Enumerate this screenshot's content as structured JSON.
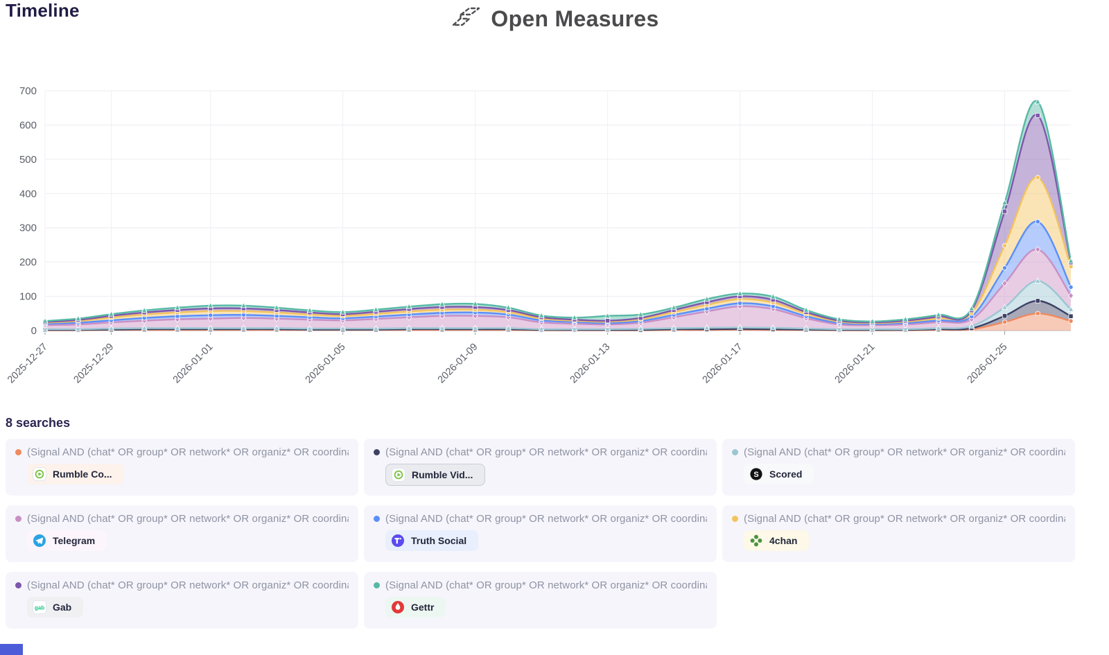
{
  "header": {
    "page_title": "Timeline",
    "brand": "Open Measures"
  },
  "misc": {
    "bottom_left_bar_color": "#4c5cd9"
  },
  "chart_data": {
    "type": "area",
    "stacked": true,
    "title": "Timeline",
    "xlabel": "",
    "ylabel": "",
    "ylim": [
      0,
      700
    ],
    "yticks": [
      0,
      100,
      200,
      300,
      400,
      500,
      600,
      700
    ],
    "grid": true,
    "legend_position": "bottom",
    "x": [
      "2025-12-27",
      "2025-12-28",
      "2025-12-29",
      "2025-12-30",
      "2025-12-31",
      "2026-01-01",
      "2026-01-02",
      "2026-01-03",
      "2026-01-04",
      "2026-01-05",
      "2026-01-06",
      "2026-01-07",
      "2026-01-08",
      "2026-01-09",
      "2026-01-10",
      "2026-01-11",
      "2026-01-12",
      "2026-01-13",
      "2026-01-14",
      "2026-01-15",
      "2026-01-16",
      "2026-01-17",
      "2026-01-18",
      "2026-01-19",
      "2026-01-20",
      "2026-01-21",
      "2026-01-22",
      "2026-01-23",
      "2026-01-24",
      "2026-01-25",
      "2026-01-26",
      "2026-01-27"
    ],
    "xticks": [
      "2025-12-27",
      "2025-12-29",
      "2026-01-01",
      "2026-01-05",
      "2026-01-09",
      "2026-01-13",
      "2026-01-17",
      "2026-01-21",
      "2026-01-25"
    ],
    "series": [
      {
        "name": "Rumble Co...",
        "color": "#ee8a5f",
        "marker": "circle",
        "values": [
          1,
          1,
          2,
          2,
          2,
          2,
          2,
          2,
          2,
          2,
          2,
          2,
          2,
          2,
          2,
          1,
          1,
          1,
          1,
          2,
          2,
          3,
          2,
          2,
          1,
          1,
          1,
          2,
          4,
          25,
          50,
          28
        ]
      },
      {
        "name": "Rumble Vid...",
        "color": "#3d4164",
        "marker": "square",
        "values": [
          1,
          1,
          1,
          2,
          2,
          2,
          2,
          2,
          1,
          1,
          1,
          2,
          2,
          2,
          2,
          1,
          1,
          1,
          1,
          2,
          2,
          2,
          2,
          1,
          1,
          1,
          1,
          2,
          3,
          18,
          37,
          14
        ]
      },
      {
        "name": "Scored",
        "color": "#9ac6d2",
        "marker": "triangle",
        "values": [
          2,
          2,
          3,
          3,
          3,
          3,
          3,
          3,
          3,
          3,
          3,
          3,
          3,
          3,
          3,
          2,
          2,
          2,
          3,
          3,
          4,
          4,
          4,
          3,
          2,
          2,
          2,
          3,
          6,
          25,
          58,
          20
        ]
      },
      {
        "name": "Telegram",
        "color": "#c98fc3",
        "marker": "diamond",
        "values": [
          12,
          14,
          18,
          22,
          26,
          28,
          30,
          28,
          26,
          24,
          28,
          32,
          36,
          36,
          32,
          20,
          16,
          14,
          18,
          32,
          48,
          62,
          55,
          30,
          14,
          12,
          14,
          18,
          20,
          70,
          92,
          40
        ]
      },
      {
        "name": "Truth Social",
        "color": "#5b8ff9",
        "marker": "circle",
        "values": [
          4,
          5,
          6,
          8,
          9,
          10,
          9,
          8,
          7,
          6,
          7,
          8,
          9,
          10,
          8,
          6,
          5,
          4,
          5,
          7,
          8,
          9,
          8,
          6,
          4,
          3,
          4,
          5,
          8,
          45,
          81,
          25
        ]
      },
      {
        "name": "4chan",
        "color": "#f3c35e",
        "marker": "circle",
        "values": [
          3,
          5,
          8,
          10,
          11,
          12,
          11,
          10,
          8,
          7,
          8,
          9,
          9,
          8,
          7,
          5,
          4,
          4,
          5,
          8,
          11,
          12,
          11,
          7,
          4,
          3,
          4,
          6,
          10,
          65,
          129,
          60
        ]
      },
      {
        "name": "Gab",
        "color": "#7e57ab",
        "marker": "square",
        "values": [
          2,
          3,
          5,
          6,
          7,
          8,
          8,
          7,
          6,
          5,
          6,
          7,
          8,
          8,
          6,
          4,
          3,
          3,
          4,
          6,
          8,
          8,
          8,
          5,
          3,
          2,
          3,
          5,
          8,
          100,
          181,
          12
        ]
      },
      {
        "name": "Gettr",
        "color": "#57b9a5",
        "marker": "triangle",
        "values": [
          3,
          4,
          5,
          6,
          7,
          8,
          8,
          7,
          6,
          6,
          6,
          7,
          8,
          9,
          7,
          5,
          6,
          14,
          10,
          7,
          9,
          8,
          9,
          6,
          4,
          3,
          4,
          5,
          5,
          25,
          40,
          4
        ]
      }
    ]
  },
  "legend": {
    "heading": "8 searches",
    "items": [
      {
        "platform": "Rumble Co...",
        "icon": "rumble-icon",
        "dot_color": "#ee8a5f",
        "badge_bg": "#fdf2ec",
        "query": "(Signal AND (chat* OR group* OR network* OR organiz* OR coordinat*..."
      },
      {
        "platform": "Rumble Vid...",
        "icon": "rumble-icon",
        "dot_color": "#3d4164",
        "badge_bg": "#e9ebef",
        "badge_border": "#c9ced6",
        "query": "(Signal AND (chat* OR group* OR network* OR organiz* OR coordinat*..."
      },
      {
        "platform": "Scored",
        "icon": "scored-icon",
        "dot_color": "#9ac6d2",
        "badge_bg": "#f7f9fa",
        "query": "(Signal AND (chat* OR group* OR network* OR organiz* OR coordinat*..."
      },
      {
        "platform": "Telegram",
        "icon": "telegram-icon",
        "dot_color": "#c98fc3",
        "badge_bg": "#fcf5fb",
        "query": "(Signal AND (chat* OR group* OR network* OR organiz* OR coordinat*..."
      },
      {
        "platform": "Truth Social",
        "icon": "truth-social-icon",
        "dot_color": "#5b8ff9",
        "badge_bg": "#e9effc",
        "query": "(Signal AND (chat* OR group* OR network* OR organiz* OR coordinat*..."
      },
      {
        "platform": "4chan",
        "icon": "4chan-icon",
        "dot_color": "#f3c35e",
        "badge_bg": "#fdf8e7",
        "query": "(Signal AND (chat* OR group* OR network* OR organiz* OR coordinat*..."
      },
      {
        "platform": "Gab",
        "icon": "gab-icon",
        "dot_color": "#7e57ab",
        "badge_bg": "#f0f0f3",
        "query": "(Signal AND (chat* OR group* OR network* OR organiz* OR coordinat*..."
      },
      {
        "platform": "Gettr",
        "icon": "gettr-icon",
        "dot_color": "#57b9a5",
        "badge_bg": "#edf7f2",
        "query": "(Signal AND (chat* OR group* OR network* OR organiz* OR coordinat*..."
      }
    ]
  }
}
